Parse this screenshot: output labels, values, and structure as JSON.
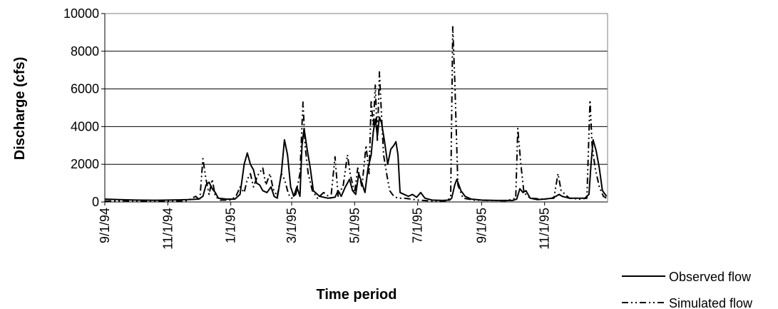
{
  "chart_data": {
    "type": "line",
    "title": "",
    "xlabel": "Time period",
    "ylabel": "Discharge (cfs)",
    "ylim": [
      0,
      10000
    ],
    "xlim": [
      "1994-09-01",
      "1995-12-31"
    ],
    "yticks": [
      0,
      2000,
      4000,
      6000,
      8000,
      10000
    ],
    "xticks": [
      "9/1/94",
      "11/1/94",
      "1/1/95",
      "3/1/95",
      "5/1/95",
      "7/1/95",
      "9/1/95",
      "11/1/95"
    ],
    "grid": "horizontal",
    "legend_position": "bottom-right",
    "series": [
      {
        "name": "Observed flow",
        "style": "solid",
        "color": "#000000",
        "points": [
          [
            "1994-09-01",
            150
          ],
          [
            "1994-09-15",
            120
          ],
          [
            "1994-10-01",
            100
          ],
          [
            "1994-10-20",
            90
          ],
          [
            "1994-11-01",
            100
          ],
          [
            "1994-11-20",
            120
          ],
          [
            "1994-12-01",
            150
          ],
          [
            "1994-12-05",
            300
          ],
          [
            "1994-12-08",
            900
          ],
          [
            "1994-12-11",
            1050
          ],
          [
            "1994-12-14",
            700
          ],
          [
            "1994-12-17",
            500
          ],
          [
            "1994-12-20",
            200
          ],
          [
            "1994-12-28",
            150
          ],
          [
            "1995-01-05",
            150
          ],
          [
            "1995-01-10",
            400
          ],
          [
            "1995-01-14",
            2000
          ],
          [
            "1995-01-17",
            2600
          ],
          [
            "1995-01-20",
            2000
          ],
          [
            "1995-01-23",
            1700
          ],
          [
            "1995-01-26",
            1000
          ],
          [
            "1995-01-29",
            900
          ],
          [
            "1995-02-01",
            600
          ],
          [
            "1995-02-05",
            500
          ],
          [
            "1995-02-09",
            800
          ],
          [
            "1995-02-12",
            300
          ],
          [
            "1995-02-15",
            200
          ],
          [
            "1995-02-19",
            1500
          ],
          [
            "1995-02-22",
            3300
          ],
          [
            "1995-02-25",
            2500
          ],
          [
            "1995-02-28",
            800
          ],
          [
            "1995-03-03",
            300
          ],
          [
            "1995-03-06",
            800
          ],
          [
            "1995-03-09",
            300
          ],
          [
            "1995-03-11",
            3000
          ],
          [
            "1995-03-13",
            3900
          ],
          [
            "1995-03-16",
            2800
          ],
          [
            "1995-03-19",
            1800
          ],
          [
            "1995-03-22",
            600
          ],
          [
            "1995-03-28",
            300
          ],
          [
            "1995-04-05",
            200
          ],
          [
            "1995-04-12",
            250
          ],
          [
            "1995-04-15",
            600
          ],
          [
            "1995-04-18",
            300
          ],
          [
            "1995-04-22",
            800
          ],
          [
            "1995-04-26",
            1200
          ],
          [
            "1995-04-29",
            600
          ],
          [
            "1995-05-02",
            400
          ],
          [
            "1995-05-05",
            1500
          ],
          [
            "1995-05-08",
            1000
          ],
          [
            "1995-05-11",
            500
          ],
          [
            "1995-05-14",
            1800
          ],
          [
            "1995-05-17",
            2500
          ],
          [
            "1995-05-19",
            3700
          ],
          [
            "1995-05-21",
            4400
          ],
          [
            "1995-05-23",
            3500
          ],
          [
            "1995-05-25",
            4500
          ],
          [
            "1995-05-27",
            4200
          ],
          [
            "1995-05-30",
            3200
          ],
          [
            "1995-06-02",
            2000
          ],
          [
            "1995-06-05",
            2800
          ],
          [
            "1995-06-08",
            3000
          ],
          [
            "1995-06-10",
            3200
          ],
          [
            "1995-06-12",
            2500
          ],
          [
            "1995-06-14",
            500
          ],
          [
            "1995-06-18",
            400
          ],
          [
            "1995-06-22",
            300
          ],
          [
            "1995-06-26",
            400
          ],
          [
            "1995-06-30",
            250
          ],
          [
            "1995-07-04",
            500
          ],
          [
            "1995-07-08",
            200
          ],
          [
            "1995-07-15",
            100
          ],
          [
            "1995-07-25",
            80
          ],
          [
            "1995-08-01",
            100
          ],
          [
            "1995-08-03",
            200
          ],
          [
            "1995-08-06",
            900
          ],
          [
            "1995-08-08",
            1200
          ],
          [
            "1995-08-12",
            600
          ],
          [
            "1995-08-16",
            300
          ],
          [
            "1995-08-22",
            150
          ],
          [
            "1995-09-01",
            100
          ],
          [
            "1995-09-15",
            80
          ],
          [
            "1995-10-01",
            80
          ],
          [
            "1995-10-05",
            150
          ],
          [
            "1995-10-08",
            700
          ],
          [
            "1995-10-11",
            500
          ],
          [
            "1995-10-14",
            600
          ],
          [
            "1995-10-18",
            200
          ],
          [
            "1995-10-25",
            120
          ],
          [
            "1995-11-01",
            150
          ],
          [
            "1995-11-08",
            200
          ],
          [
            "1995-11-12",
            300
          ],
          [
            "1995-11-15",
            400
          ],
          [
            "1995-11-18",
            300
          ],
          [
            "1995-11-25",
            200
          ],
          [
            "1995-12-01",
            200
          ],
          [
            "1995-12-10",
            200
          ],
          [
            "1995-12-14",
            400
          ],
          [
            "1995-12-16",
            2000
          ],
          [
            "1995-12-18",
            3300
          ],
          [
            "1995-12-21",
            2700
          ],
          [
            "1995-12-24",
            1800
          ],
          [
            "1995-12-27",
            600
          ],
          [
            "1995-12-31",
            300
          ]
        ]
      },
      {
        "name": "Simulated flow",
        "style": "dash-dot",
        "color": "#000000",
        "points": [
          [
            "1994-09-01",
            50
          ],
          [
            "1994-09-20",
            60
          ],
          [
            "1994-10-10",
            50
          ],
          [
            "1994-11-01",
            50
          ],
          [
            "1994-11-20",
            60
          ],
          [
            "1994-11-28",
            300
          ],
          [
            "1994-12-02",
            100
          ],
          [
            "1994-12-05",
            2300
          ],
          [
            "1994-12-08",
            1200
          ],
          [
            "1994-12-11",
            400
          ],
          [
            "1994-12-14",
            1200
          ],
          [
            "1994-12-17",
            300
          ],
          [
            "1994-12-22",
            100
          ],
          [
            "1995-01-01",
            100
          ],
          [
            "1995-01-06",
            300
          ],
          [
            "1995-01-10",
            800
          ],
          [
            "1995-01-14",
            500
          ],
          [
            "1995-01-17",
            1200
          ],
          [
            "1995-01-20",
            1500
          ],
          [
            "1995-01-23",
            800
          ],
          [
            "1995-01-27",
            1400
          ],
          [
            "1995-02-01",
            1800
          ],
          [
            "1995-02-04",
            900
          ],
          [
            "1995-02-08",
            1500
          ],
          [
            "1995-02-11",
            700
          ],
          [
            "1995-02-15",
            300
          ],
          [
            "1995-02-19",
            1500
          ],
          [
            "1995-02-22",
            1200
          ],
          [
            "1995-02-26",
            400
          ],
          [
            "1995-03-01",
            200
          ],
          [
            "1995-03-05",
            400
          ],
          [
            "1995-03-09",
            1500
          ],
          [
            "1995-03-12",
            5300
          ],
          [
            "1995-03-14",
            3000
          ],
          [
            "1995-03-17",
            1500
          ],
          [
            "1995-03-21",
            600
          ],
          [
            "1995-03-26",
            200
          ],
          [
            "1995-04-01",
            500
          ],
          [
            "1995-04-08",
            200
          ],
          [
            "1995-04-12",
            2400
          ],
          [
            "1995-04-15",
            300
          ],
          [
            "1995-04-20",
            900
          ],
          [
            "1995-04-24",
            2500
          ],
          [
            "1995-04-27",
            1400
          ],
          [
            "1995-05-01",
            500
          ],
          [
            "1995-05-04",
            1800
          ],
          [
            "1995-05-08",
            800
          ],
          [
            "1995-05-12",
            3000
          ],
          [
            "1995-05-15",
            1500
          ],
          [
            "1995-05-17",
            5400
          ],
          [
            "1995-05-19",
            4000
          ],
          [
            "1995-05-21",
            6200
          ],
          [
            "1995-05-23",
            3200
          ],
          [
            "1995-05-25",
            6900
          ],
          [
            "1995-05-27",
            4600
          ],
          [
            "1995-05-29",
            2500
          ],
          [
            "1995-06-01",
            1500
          ],
          [
            "1995-06-04",
            600
          ],
          [
            "1995-06-08",
            300
          ],
          [
            "1995-06-12",
            200
          ],
          [
            "1995-06-18",
            200
          ],
          [
            "1995-06-25",
            150
          ],
          [
            "1995-07-01",
            100
          ],
          [
            "1995-07-15",
            50
          ],
          [
            "1995-07-30",
            60
          ],
          [
            "1995-08-02",
            300
          ],
          [
            "1995-08-04",
            9300
          ],
          [
            "1995-08-06",
            6500
          ],
          [
            "1995-08-09",
            900
          ],
          [
            "1995-08-14",
            200
          ],
          [
            "1995-08-25",
            100
          ],
          [
            "1995-09-10",
            80
          ],
          [
            "1995-09-25",
            60
          ],
          [
            "1995-10-04",
            200
          ],
          [
            "1995-10-06",
            3900
          ],
          [
            "1995-10-09",
            2000
          ],
          [
            "1995-10-12",
            500
          ],
          [
            "1995-10-18",
            200
          ],
          [
            "1995-10-30",
            150
          ],
          [
            "1995-11-10",
            200
          ],
          [
            "1995-11-14",
            1500
          ],
          [
            "1995-11-17",
            600
          ],
          [
            "1995-11-25",
            200
          ],
          [
            "1995-12-05",
            150
          ],
          [
            "1995-12-12",
            200
          ],
          [
            "1995-12-15",
            5400
          ],
          [
            "1995-12-17",
            3000
          ],
          [
            "1995-12-20",
            1800
          ],
          [
            "1995-12-24",
            800
          ],
          [
            "1995-12-28",
            300
          ],
          [
            "1995-12-31",
            200
          ]
        ]
      }
    ]
  }
}
